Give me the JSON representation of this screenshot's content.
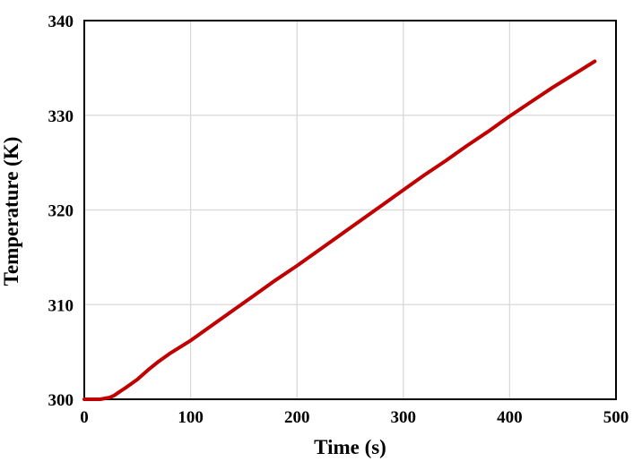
{
  "chart_data": {
    "type": "line",
    "title": "",
    "xlabel": "Time (s)",
    "ylabel": "Temperature (K)",
    "xlim": [
      0,
      500
    ],
    "ylim": [
      300,
      340
    ],
    "xticks": [
      0,
      100,
      200,
      300,
      400,
      500
    ],
    "xtick_labels": [
      "0",
      "100",
      "200",
      "300",
      "400",
      "500"
    ],
    "yticks": [
      300,
      310,
      320,
      330,
      340
    ],
    "ytick_labels": [
      "300",
      "310",
      "320",
      "330",
      "340"
    ],
    "grid": true,
    "legend": "none",
    "colors": {
      "line": "#C00000",
      "grid": "#D9D9D9",
      "axis": "#000000",
      "background": "#FFFFFF",
      "text": "#000000"
    },
    "series": [
      {
        "name": "Temperature",
        "color": "#C00000",
        "x": [
          0,
          5,
          10,
          15,
          20,
          24,
          28,
          32,
          36,
          40,
          45,
          50,
          55,
          60,
          70,
          80,
          90,
          100,
          120,
          140,
          160,
          180,
          200,
          220,
          240,
          260,
          280,
          300,
          320,
          340,
          360,
          380,
          400,
          420,
          440,
          460,
          480
        ],
        "y": [
          300,
          300,
          300,
          300,
          300.1,
          300.2,
          300.4,
          300.7,
          301.0,
          301.3,
          301.7,
          302.1,
          302.6,
          303.1,
          304.0,
          304.8,
          305.5,
          306.2,
          307.8,
          309.4,
          311.0,
          312.6,
          314.1,
          315.7,
          317.3,
          318.9,
          320.5,
          322.1,
          323.7,
          325.2,
          326.8,
          328.3,
          329.9,
          331.4,
          332.9,
          334.3,
          335.7
        ]
      }
    ]
  }
}
